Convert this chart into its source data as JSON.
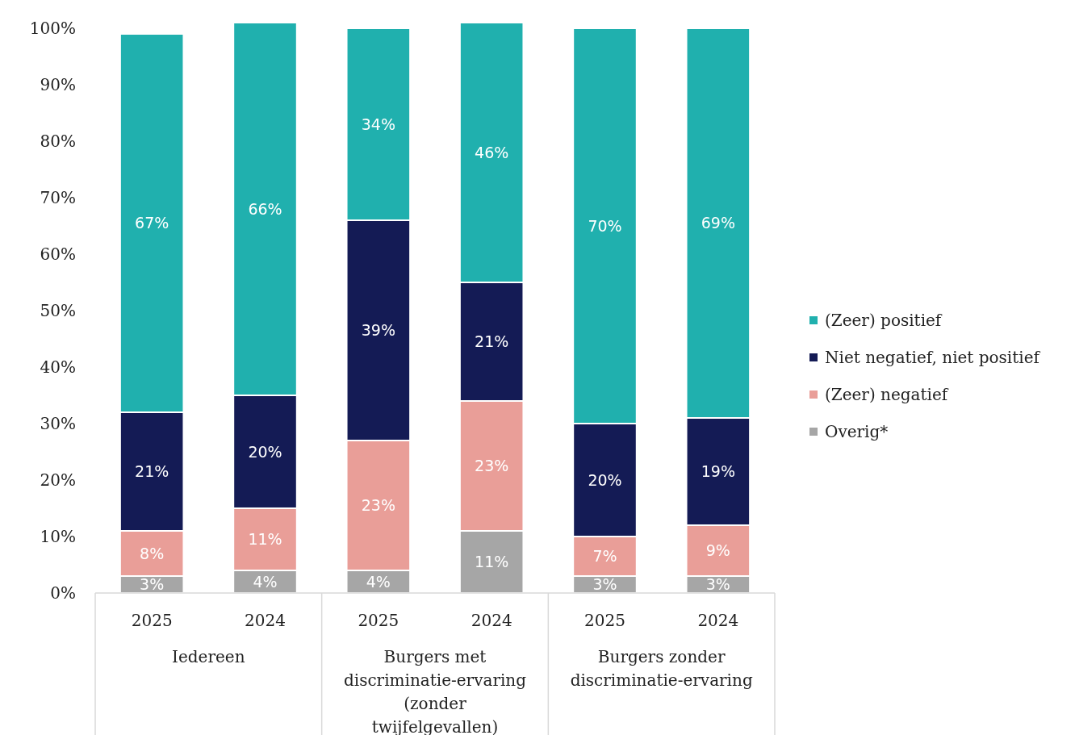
{
  "chart_data": {
    "type": "bar",
    "stacked": true,
    "categories": [
      "2025",
      "2024",
      "2025",
      "2024",
      "2025",
      "2024"
    ],
    "series": [
      {
        "name": "Overig*",
        "color": "#a6a6a6",
        "values": [
          3,
          4,
          4,
          11,
          3,
          3
        ],
        "value_labels": [
          "3%",
          "4%",
          "4%",
          "11%",
          "3%",
          "3%"
        ]
      },
      {
        "name": "(Zeer) negatief",
        "color": "#e99e98",
        "values": [
          8,
          11,
          23,
          23,
          7,
          9
        ],
        "value_labels": [
          "8%",
          "11%",
          "23%",
          "23%",
          "7%",
          "9%"
        ]
      },
      {
        "name": "Niet negatief, niet positief",
        "color": "#141b55",
        "values": [
          21,
          20,
          39,
          21,
          20,
          19
        ],
        "value_labels": [
          "21%",
          "20%",
          "39%",
          "21%",
          "20%",
          "19%"
        ]
      },
      {
        "name": "(Zeer) positief",
        "color": "#20b0ae",
        "values": [
          67,
          66,
          34,
          46,
          70,
          69
        ],
        "value_labels": [
          "67%",
          "66%",
          "34%",
          "46%",
          "70%",
          "69%"
        ]
      }
    ],
    "annotations": [
      "Iedereen",
      "Burgers met discriminatie-ervaring (zonder twijfelgevallen)",
      "Burgers zonder discriminatie-ervaring"
    ],
    "ylim": [
      0,
      101
    ],
    "yticks": [
      {
        "value": 0,
        "label": "0%"
      },
      {
        "value": 10,
        "label": "10%"
      },
      {
        "value": 20,
        "label": "20%"
      },
      {
        "value": 30,
        "label": "30%"
      },
      {
        "value": 40,
        "label": "40%"
      },
      {
        "value": 50,
        "label": "50%"
      },
      {
        "value": 60,
        "label": "60%"
      },
      {
        "value": 70,
        "label": "70%"
      },
      {
        "value": 80,
        "label": "80%"
      },
      {
        "value": 90,
        "label": "90%"
      },
      {
        "value": 100,
        "label": "100%"
      }
    ],
    "grid": false,
    "legend": "right"
  }
}
